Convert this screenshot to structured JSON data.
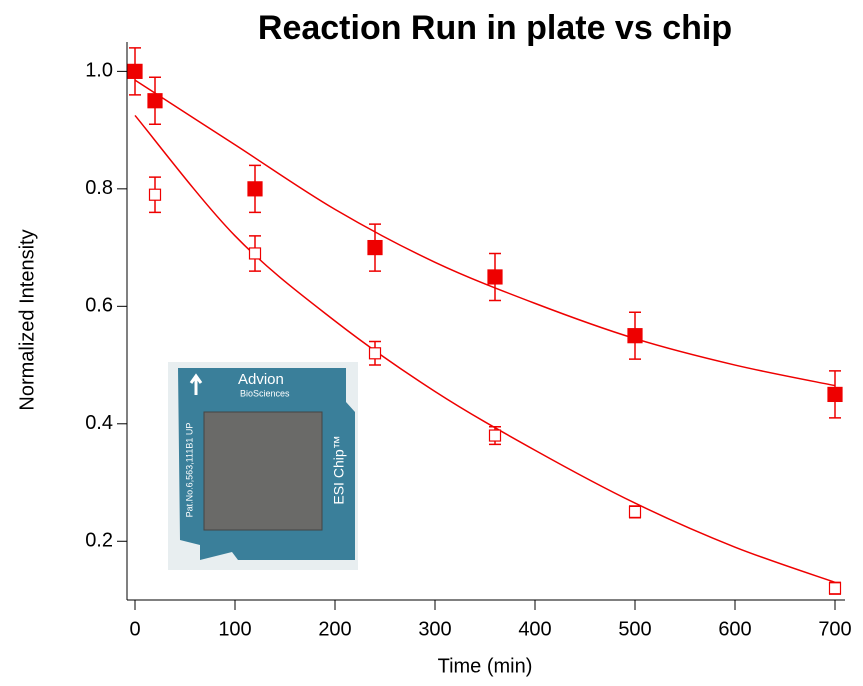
{
  "chart_data": {
    "type": "scatter",
    "title": "Reaction Run in plate vs chip",
    "x_label": "Time (min)",
    "y_label": "Normalized Intensity",
    "xlim": [
      -8,
      710
    ],
    "ylim": [
      0.1,
      1.05
    ],
    "xticks": [
      0,
      100,
      200,
      300,
      400,
      500,
      600,
      700
    ],
    "yticks": [
      {
        "value": 0.2,
        "label": "0.2"
      },
      {
        "value": 0.4,
        "label": "0.4"
      },
      {
        "value": 0.6,
        "label": "0.6"
      },
      {
        "value": 0.8,
        "label": "0.8"
      },
      {
        "value": 1.0,
        "label": "1.0"
      }
    ],
    "color": "#ee0000",
    "series": [
      {
        "marker": "filled",
        "x": [
          0,
          20,
          120,
          240,
          360,
          500,
          700
        ],
        "values": [
          1.0,
          0.95,
          0.8,
          0.7,
          0.65,
          0.55,
          0.45
        ],
        "errors": [
          0.04,
          0.04,
          0.04,
          0.04,
          0.04,
          0.04,
          0.04
        ],
        "fit_x": [
          0,
          100,
          200,
          300,
          400,
          500,
          600,
          700
        ],
        "fit_values": [
          0.985,
          0.875,
          0.765,
          0.675,
          0.605,
          0.545,
          0.5,
          0.465
        ]
      },
      {
        "marker": "open",
        "x": [
          20,
          120,
          240,
          360,
          500,
          700
        ],
        "values": [
          0.79,
          0.69,
          0.52,
          0.38,
          0.25,
          0.12
        ],
        "errors": [
          0.03,
          0.03,
          0.02,
          0.015,
          0.01,
          0.01
        ],
        "fit_x": [
          0,
          100,
          200,
          300,
          400,
          500,
          600,
          700
        ],
        "fit_values": [
          0.925,
          0.72,
          0.575,
          0.455,
          0.355,
          0.265,
          0.19,
          0.13
        ]
      }
    ],
    "inset": {
      "brand": "Advion",
      "brand_sub": "BioSciences",
      "product": "ESI Chip™",
      "patent": "Pat.No.6,563,111B1 UP"
    }
  }
}
